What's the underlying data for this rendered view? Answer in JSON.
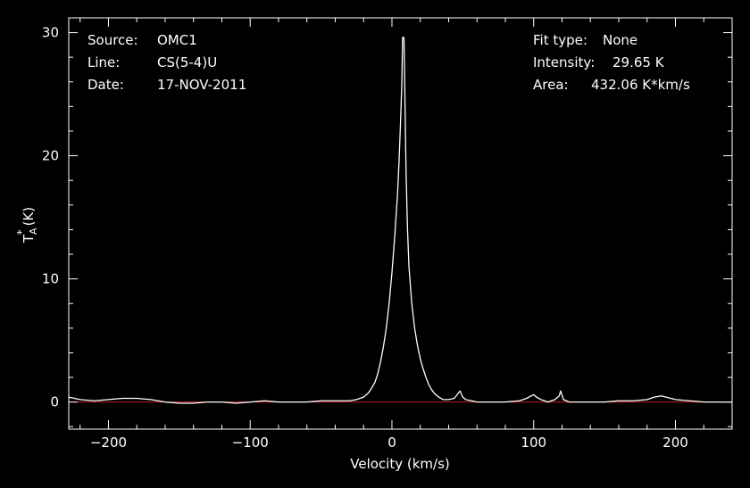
{
  "info": {
    "source_label": "Source:",
    "source_value": "OMC1",
    "line_label": "Line:",
    "line_value": "CS(5-4)U",
    "date_label": "Date:",
    "date_value": "17-NOV-2011",
    "fit_label": "Fit type:",
    "fit_value": "None",
    "intensity_label": "Intensity:",
    "intensity_value": "29.65 K",
    "area_label": "Area:",
    "area_value": "432.06 K*km/s"
  },
  "chart_data": {
    "type": "line",
    "title": "",
    "xlabel": "Velocity (km/s)",
    "ylabel_main": "T",
    "ylabel_sub": "A",
    "ylabel_sup": "*",
    "ylabel_unit": "(K)",
    "xlim": [
      -228,
      240
    ],
    "ylim": [
      -2.2,
      31.2
    ],
    "x_ticks": [
      -200,
      -100,
      0,
      100,
      200
    ],
    "x_tick_labels": [
      "−200",
      "−100",
      "0",
      "100",
      "200"
    ],
    "y_ticks": [
      0,
      10,
      20,
      30
    ],
    "y_tick_labels": [
      "0",
      "10",
      "20",
      "30"
    ],
    "baseline": {
      "y": 0,
      "color": "#c41e1e"
    },
    "colors": {
      "spectrum": "#ffffff",
      "axes": "#ffffff",
      "background": "#000000"
    },
    "series": [
      {
        "x": [
          -228,
          -220,
          -210,
          -200,
          -190,
          -180,
          -170,
          -160,
          -150,
          -140,
          -130,
          -120,
          -110,
          -100,
          -90,
          -80,
          -70,
          -60,
          -50,
          -40,
          -35,
          -30,
          -25,
          -20,
          -17,
          -15,
          -12,
          -10,
          -8,
          -6,
          -4,
          -2,
          0,
          2,
          4,
          5,
          6,
          7,
          7.5,
          8,
          8.5,
          9,
          9.5,
          10,
          11,
          12,
          14,
          16,
          18,
          20,
          22,
          24,
          26,
          28,
          30,
          33,
          36,
          40,
          44,
          46,
          48,
          50,
          52,
          56,
          60,
          70,
          80,
          90,
          95,
          100,
          102,
          105,
          110,
          115,
          118,
          119,
          121,
          125,
          130,
          140,
          150,
          160,
          170,
          180,
          185,
          190,
          200,
          210,
          220,
          230,
          240
        ],
        "y": [
          0.4,
          0.2,
          0.1,
          0.2,
          0.3,
          0.3,
          0.2,
          0.0,
          -0.1,
          -0.1,
          0.0,
          0.0,
          -0.1,
          0.0,
          0.1,
          0.0,
          0.0,
          0.0,
          0.1,
          0.1,
          0.1,
          0.1,
          0.2,
          0.4,
          0.7,
          1.0,
          1.6,
          2.3,
          3.3,
          4.5,
          6.0,
          8.0,
          10.5,
          13.5,
          17.0,
          19.5,
          22.5,
          26.0,
          29.6,
          29.6,
          29.6,
          26.0,
          22.0,
          18.5,
          14.0,
          11.0,
          8.0,
          6.0,
          4.6,
          3.5,
          2.7,
          2.0,
          1.4,
          1.0,
          0.7,
          0.4,
          0.2,
          0.2,
          0.3,
          0.6,
          0.9,
          0.4,
          0.2,
          0.1,
          0.0,
          0.0,
          0.0,
          0.1,
          0.3,
          0.6,
          0.4,
          0.2,
          0.0,
          0.2,
          0.5,
          0.9,
          0.2,
          0.0,
          0.0,
          0.0,
          0.0,
          0.1,
          0.1,
          0.2,
          0.4,
          0.5,
          0.2,
          0.1,
          0.0,
          0.0,
          0.0
        ]
      }
    ]
  }
}
